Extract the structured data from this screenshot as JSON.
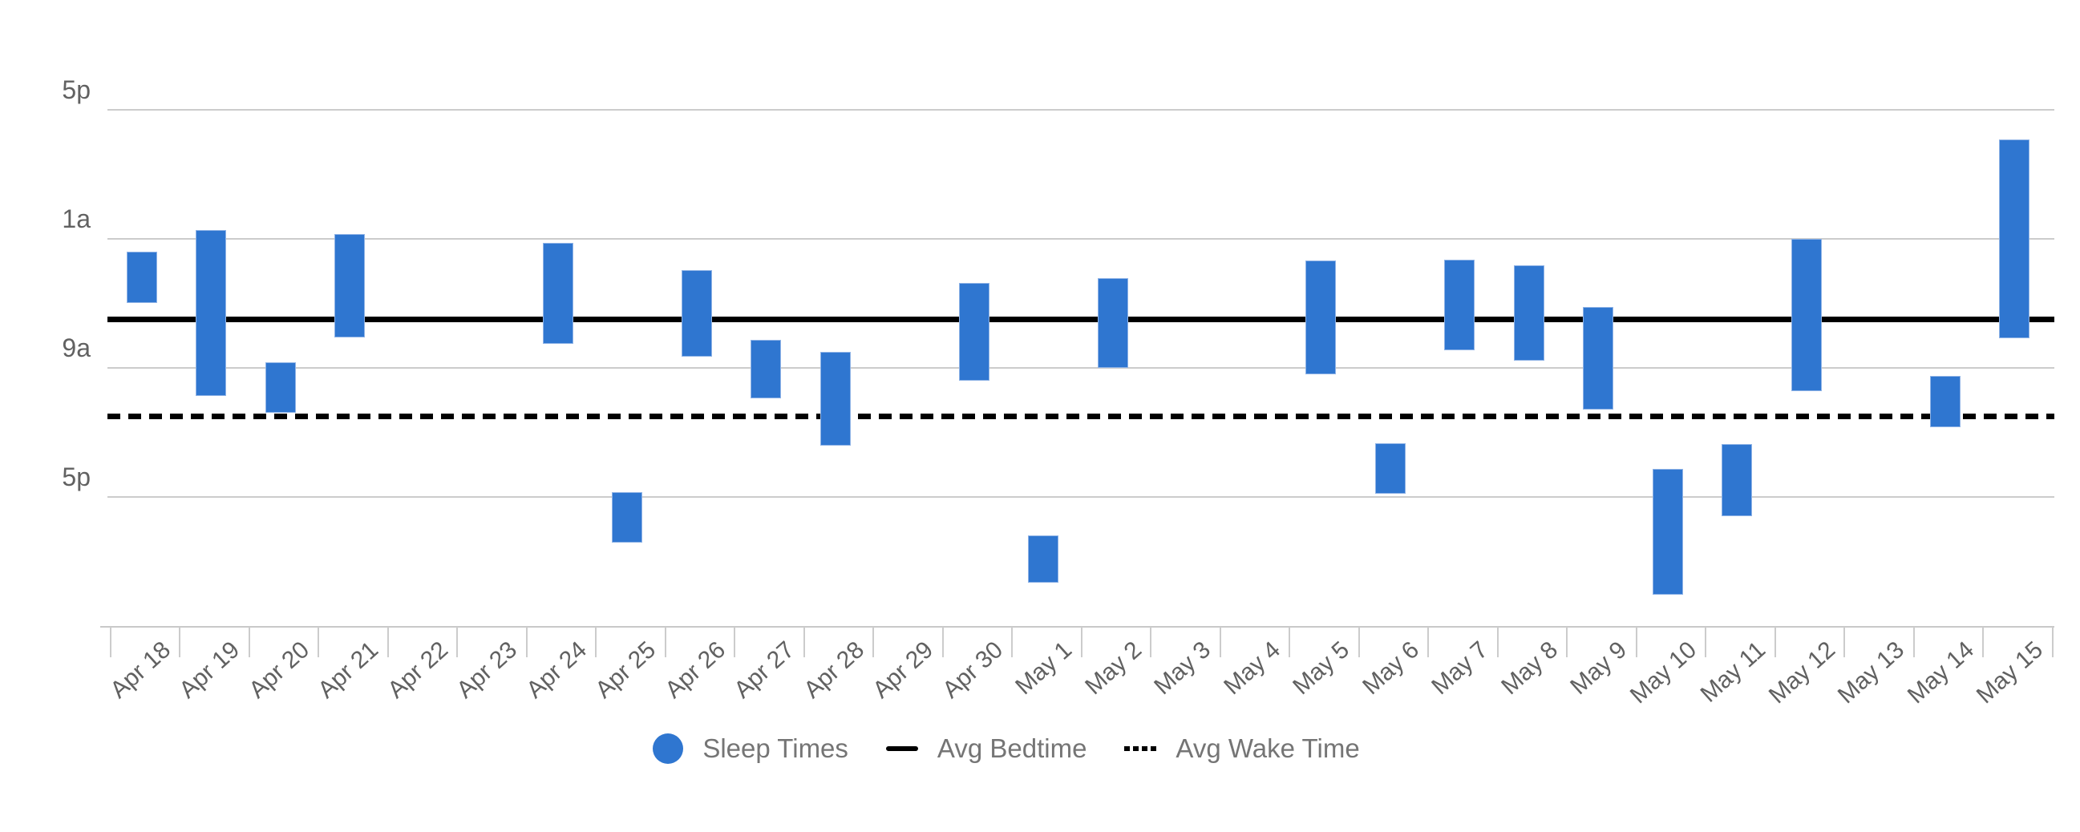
{
  "chart_data": {
    "type": "bar",
    "subtype": "floating-range-bars-vertical",
    "title": "",
    "categories": [
      "Apr 18",
      "Apr 19",
      "Apr 20",
      "Apr 21",
      "Apr 22",
      "Apr 23",
      "Apr 24",
      "Apr 25",
      "Apr 26",
      "Apr 27",
      "Apr 28",
      "Apr 29",
      "Apr 30",
      "May 1",
      "May 2",
      "May 3",
      "May 4",
      "May 5",
      "May 6",
      "May 7",
      "May 8",
      "May 9",
      "May 10",
      "May 11",
      "May 12",
      "May 13",
      "May 14",
      "May 15"
    ],
    "y_axis": {
      "description": "time of day, increasing downward from 5pm through the night to 5pm next day; hours_after_5pm used as scale",
      "tick_labels": [
        {
          "label": "5p",
          "hours_after_5pm": 0
        },
        {
          "label": "1a",
          "hours_after_5pm": 8
        },
        {
          "label": "9a",
          "hours_after_5pm": 16
        },
        {
          "label": "5p",
          "hours_after_5pm": 24
        }
      ],
      "range_hours": [
        0,
        32
      ]
    },
    "grid": {
      "horizontal": true,
      "vertical": false,
      "color": "#cccccc"
    },
    "series": [
      {
        "name": "Sleep Times",
        "color": "#2f76d0",
        "points": [
          {
            "date": "Apr 18",
            "start": "1:45a",
            "end": "4:55a",
            "start_h": 8.79,
            "end_h": 11.96
          },
          {
            "date": "Apr 19",
            "start": "12:25a",
            "end": "10:45a",
            "start_h": 7.45,
            "end_h": 17.73
          },
          {
            "date": "Apr 20",
            "start": "8:40a",
            "end": "11:45a",
            "start_h": 15.64,
            "end_h": 18.77
          },
          {
            "date": "Apr 21",
            "start": "12:40a",
            "end": "7:05a",
            "start_h": 7.71,
            "end_h": 14.11
          },
          null,
          null,
          {
            "date": "Apr 24",
            "start": "1:15a",
            "end": "7:30a",
            "start_h": 8.23,
            "end_h": 14.51
          },
          {
            "date": "Apr 25",
            "start": "4:40p",
            "end": "7:50p",
            "start_h": 23.69,
            "end_h": 26.83
          },
          {
            "date": "Apr 26",
            "start": "2:55a",
            "end": "8:15a",
            "start_h": 9.94,
            "end_h": 15.28
          },
          {
            "date": "Apr 27",
            "start": "7:15a",
            "end": "10:50a",
            "start_h": 14.25,
            "end_h": 17.86
          },
          {
            "date": "Apr 28",
            "start": "8:00a",
            "end": "1:50p",
            "start_h": 15.01,
            "end_h": 20.81
          },
          null,
          {
            "date": "Apr 30",
            "start": "3:40a",
            "end": "9:45a",
            "start_h": 10.7,
            "end_h": 16.78
          },
          {
            "date": "May 1",
            "start": "7:20p",
            "end": "10:20p",
            "start_h": 26.37,
            "end_h": 29.32
          },
          {
            "date": "May 2",
            "start": "3:25a",
            "end": "9:00a",
            "start_h": 10.43,
            "end_h": 16.0
          },
          null,
          null,
          {
            "date": "May 5",
            "start": "2:20a",
            "end": "9:20a",
            "start_h": 9.34,
            "end_h": 16.37
          },
          {
            "date": "May 6",
            "start": "1:40p",
            "end": "4:50p",
            "start_h": 20.68,
            "end_h": 23.81
          },
          {
            "date": "May 7",
            "start": "2:15a",
            "end": "7:55a",
            "start_h": 9.29,
            "end_h": 14.88
          },
          {
            "date": "May 8",
            "start": "2:35a",
            "end": "8:30a",
            "start_h": 9.63,
            "end_h": 15.54
          },
          {
            "date": "May 9",
            "start": "5:10a",
            "end": "11:35a",
            "start_h": 12.19,
            "end_h": 18.56
          },
          {
            "date": "May 10",
            "start": "3:15p",
            "end": "11:00p",
            "start_h": 22.23,
            "end_h": 30.03
          },
          {
            "date": "May 11",
            "start": "1:45p",
            "end": "6:10p",
            "start_h": 20.72,
            "end_h": 25.19
          },
          {
            "date": "May 12",
            "start": "1:00a",
            "end": "10:25a",
            "start_h": 8.0,
            "end_h": 17.44
          },
          null,
          {
            "date": "May 14",
            "start": "9:30a",
            "end": "12:40p",
            "start_h": 16.5,
            "end_h": 19.68
          },
          {
            "date": "May 15",
            "start": "6:50p",
            "end": "7:10a",
            "start_h": 1.84,
            "end_h": 14.16
          }
        ]
      }
    ],
    "reference_lines": [
      {
        "name": "Avg Bedtime",
        "style": "solid",
        "color": "#000000",
        "time": "6:00a",
        "hours_after_5pm": 13
      },
      {
        "name": "Avg Wake Time",
        "style": "dotted",
        "color": "#000000",
        "time": "12:00p",
        "hours_after_5pm": 19
      }
    ],
    "legend": {
      "position": "bottom",
      "entries": [
        {
          "label": "Sleep Times",
          "swatch": "circle",
          "color": "#2f76d0"
        },
        {
          "label": "Avg Bedtime",
          "swatch": "solid-line",
          "color": "#000000"
        },
        {
          "label": "Avg Wake Time",
          "swatch": "dotted-line",
          "color": "#000000"
        }
      ]
    },
    "colors": {
      "bar_fill": "#2f76d0",
      "bar_stroke": "#8fb3e6",
      "gridline": "#cccccc",
      "axis_text": "#616161",
      "legend_text": "#757575",
      "reference_line": "#000000",
      "background": "#ffffff"
    }
  }
}
